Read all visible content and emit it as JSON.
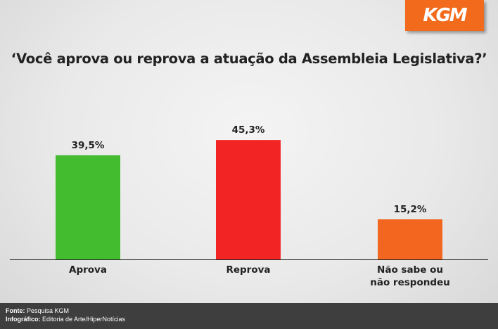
{
  "logo": "KGM",
  "colors": {
    "accent": "#f26a1b",
    "footer_bg": "#3e3e3e"
  },
  "footer": {
    "source_label": "Fonte:",
    "source_value": " Pesquisa KGM",
    "credit_label": "Infográfico:",
    "credit_value": " Editoria de Arte/HiperNotícias"
  },
  "chart_data": {
    "type": "bar",
    "title": "‘Você aprova ou reprova a atuação da Assembleia Legislativa?’",
    "categories": [
      [
        "Aprova"
      ],
      [
        "Reprova"
      ],
      [
        "Não sabe ou",
        "não respondeu"
      ]
    ],
    "values": [
      39.5,
      45.3,
      15.2
    ],
    "value_labels": [
      "39,5%",
      "45,3%",
      "15,2%"
    ],
    "colors": [
      "#43bd2f",
      "#f32424",
      "#f3661f"
    ],
    "xlabel": "",
    "ylabel": "",
    "ylim": [
      0,
      50
    ],
    "grid": false,
    "legend": "none"
  }
}
